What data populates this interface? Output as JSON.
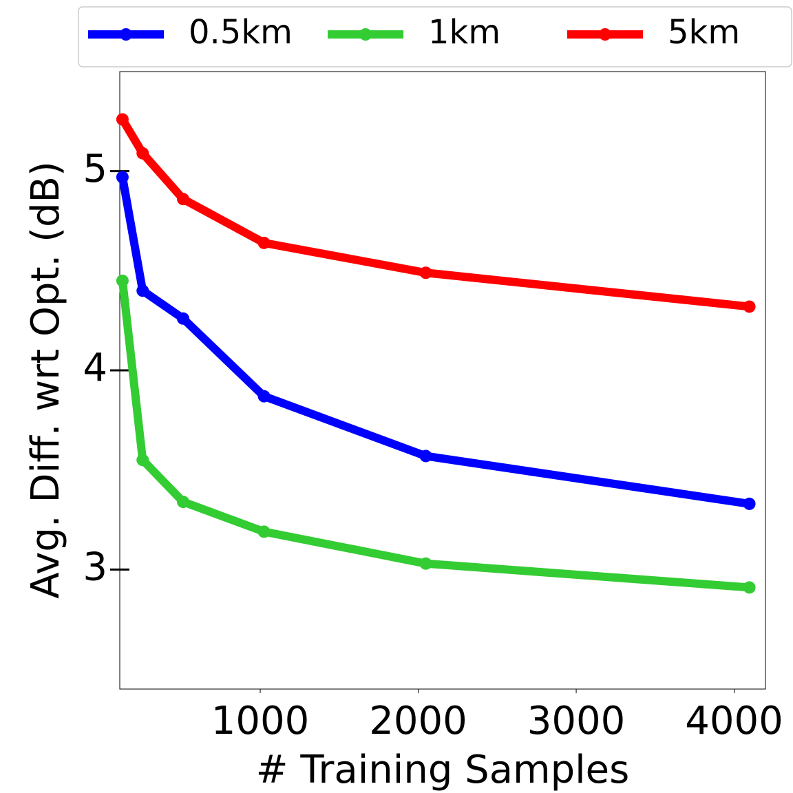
{
  "chart_data": {
    "type": "line",
    "x_label": "# Training Samples",
    "y_label": "Avg. Diff. wrt Opt. (dB)",
    "x": [
      128,
      256,
      512,
      1024,
      2048,
      4096
    ],
    "series": [
      {
        "name": "0.5km",
        "color": "#0000ff",
        "values": [
          4.97,
          4.4,
          4.26,
          3.87,
          3.57,
          3.33
        ]
      },
      {
        "name": "1km",
        "color": "#33cc33",
        "values": [
          4.45,
          3.55,
          3.34,
          3.19,
          3.03,
          2.91
        ]
      },
      {
        "name": "5km",
        "color": "#ff0000",
        "values": [
          5.26,
          5.09,
          4.86,
          4.64,
          4.49,
          4.32
        ]
      }
    ],
    "xlim": [
      111,
      4198
    ],
    "ylim": [
      2.4,
      5.5
    ],
    "xticks": [
      1000,
      2000,
      3000,
      4000
    ],
    "yticks": [
      3,
      4,
      5
    ],
    "legend": "top"
  }
}
